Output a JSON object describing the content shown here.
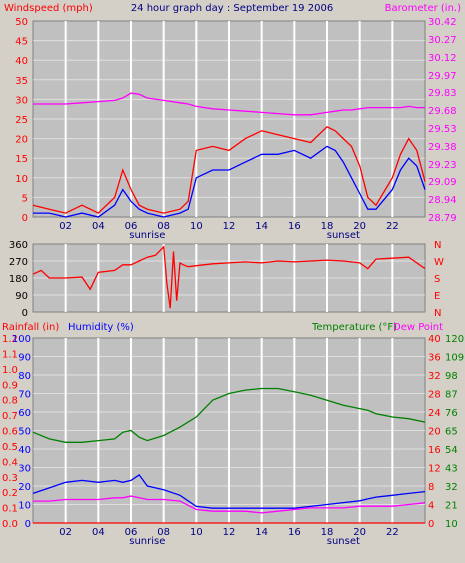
{
  "title": "24 hour graph day : September 19 2006",
  "colors": {
    "background": "#d4d0c8",
    "plot_bg": "#c0c0c0",
    "grid": "#ffffff",
    "wind": "#ff0000",
    "wind_gust": "#0000ff",
    "barometer": "#ff00ff",
    "direction": "#ff0000",
    "rain": "#ff0000",
    "humidity": "#0000ff",
    "temperature": "#008000",
    "dew_point": "#ff00ff",
    "time_label": "#000080"
  },
  "time_ticks": [
    "02",
    "04",
    "06",
    "08",
    "10",
    "12",
    "14",
    "16",
    "18",
    "20",
    "22"
  ],
  "sunrise_label": "sunrise",
  "sunset_label": "sunset",
  "chart_data": [
    {
      "type": "line",
      "panel": "wind_barometer",
      "left_axis_label": "Windspeed (mph)",
      "right_axis_label": "Barometer (in.)",
      "left_ticks": [
        "0",
        "5",
        "10",
        "15",
        "20",
        "25",
        "30",
        "35",
        "40",
        "45",
        "50"
      ],
      "left_ylim": [
        0,
        50
      ],
      "right_ticks": [
        "28.79",
        "28.94",
        "29.09",
        "29.23",
        "29.38",
        "29.53",
        "29.68",
        "29.83",
        "29.97",
        "30.12",
        "30.27",
        "30.42"
      ],
      "right_ylim": [
        28.79,
        30.42
      ],
      "xlim": [
        0,
        24
      ],
      "x": [
        0,
        1,
        2,
        3,
        4,
        5,
        5.5,
        6,
        6.5,
        7,
        8,
        9,
        9.5,
        10,
        11,
        12,
        13,
        14,
        15,
        16,
        17,
        18,
        18.5,
        19,
        19.5,
        20,
        20.5,
        21,
        22,
        22.5,
        23,
        23.5,
        24
      ],
      "series": [
        {
          "color_key": "wind",
          "axis": "left",
          "values": [
            3,
            2,
            1,
            3,
            1,
            5,
            12,
            7,
            3,
            2,
            1,
            2,
            4,
            17,
            18,
            17,
            20,
            22,
            21,
            20,
            19,
            23,
            22,
            20,
            18,
            13,
            5,
            3,
            10,
            16,
            20,
            17,
            9
          ]
        },
        {
          "color_key": "wind_gust",
          "axis": "left",
          "values": [
            1,
            1,
            0,
            1,
            0,
            3,
            7,
            4,
            2,
            1,
            0,
            1,
            2,
            10,
            12,
            12,
            14,
            16,
            16,
            17,
            15,
            18,
            17,
            14,
            10,
            6,
            2,
            2,
            7,
            12,
            15,
            13,
            7
          ]
        },
        {
          "color_key": "barometer",
          "axis": "right",
          "values": [
            29.73,
            29.73,
            29.73,
            29.74,
            29.75,
            29.76,
            29.78,
            29.82,
            29.81,
            29.78,
            29.76,
            29.74,
            29.73,
            29.71,
            29.69,
            29.68,
            29.67,
            29.66,
            29.65,
            29.64,
            29.64,
            29.66,
            29.67,
            29.68,
            29.68,
            29.69,
            29.7,
            29.7,
            29.7,
            29.7,
            29.71,
            29.7,
            29.7
          ]
        }
      ]
    },
    {
      "type": "line",
      "panel": "wind_direction",
      "left_ticks": [
        "0",
        "90",
        "180",
        "270",
        "360"
      ],
      "left_ylim": [
        0,
        360
      ],
      "right_ticks": [
        "N",
        "W",
        "S",
        "E",
        "N"
      ],
      "xlim": [
        0,
        24
      ],
      "x": [
        0,
        0.5,
        1,
        2,
        3,
        3.5,
        4,
        5,
        5.5,
        6,
        6.5,
        7,
        7.5,
        8,
        8.2,
        8.4,
        8.6,
        8.8,
        9,
        9.2,
        9.5,
        10,
        11,
        12,
        13,
        14,
        15,
        16,
        17,
        18,
        19,
        20,
        20.5,
        21,
        22,
        23,
        24
      ],
      "series": [
        {
          "color_key": "direction",
          "axis": "left",
          "values": [
            200,
            220,
            180,
            180,
            185,
            120,
            210,
            220,
            250,
            250,
            270,
            290,
            300,
            345,
            150,
            20,
            320,
            60,
            260,
            250,
            240,
            245,
            255,
            260,
            265,
            260,
            270,
            265,
            270,
            275,
            270,
            260,
            230,
            280,
            285,
            290,
            230
          ]
        }
      ]
    },
    {
      "type": "line",
      "panel": "rain_humidity_temperature",
      "left_axis_label": "Rainfall (in)",
      "left2_axis_label": "Humidity (%)",
      "right_axis_label": "Temperature (°F)",
      "right2_axis_label": "Dew Point",
      "rain_ticks": [
        "0.0",
        "0.1",
        "0.2",
        "0.3",
        "0.4",
        "0.5",
        "0.6",
        "0.7",
        "0.8",
        "0.9",
        "1.0",
        "1.1",
        "1.2"
      ],
      "rain_ylim": [
        0,
        1.2
      ],
      "humidity_ticks": [
        "0",
        "10",
        "20",
        "30",
        "40",
        "50",
        "60",
        "70",
        "80",
        "90",
        "100"
      ],
      "humidity_ylim": [
        0,
        100
      ],
      "celsius_ticks": [
        "0",
        "4",
        "8",
        "12",
        "16",
        "20",
        "24",
        "28",
        "32",
        "36",
        "40"
      ],
      "temperature_ticks": [
        "10",
        "21",
        "32",
        "43",
        "54",
        "65",
        "76",
        "87",
        "98",
        "109",
        "120"
      ],
      "temperature_ylim": [
        10,
        120
      ],
      "xlim": [
        0,
        24
      ],
      "x": [
        0,
        1,
        2,
        3,
        4,
        5,
        5.5,
        6,
        6.5,
        7,
        8,
        9,
        10,
        11,
        12,
        13,
        14,
        15,
        16,
        17,
        18,
        19,
        20,
        20.5,
        21,
        22,
        23,
        24
      ],
      "series": [
        {
          "color_key": "temperature",
          "axis": "temperature",
          "values": [
            64,
            60,
            58,
            58,
            59,
            60,
            64,
            65,
            61,
            59,
            62,
            67,
            73,
            83,
            87,
            89,
            90,
            90,
            88,
            86,
            83,
            80,
            78,
            77,
            75,
            73,
            72,
            70
          ]
        },
        {
          "color_key": "humidity",
          "axis": "humidity",
          "values": [
            16,
            19,
            22,
            23,
            22,
            23,
            22,
            23,
            26,
            20,
            18,
            15,
            9,
            8,
            8,
            8,
            8,
            8,
            8,
            9,
            10,
            11,
            12,
            13,
            14,
            15,
            16,
            17
          ]
        },
        {
          "color_key": "dew_point",
          "axis": "temperature",
          "values": [
            23,
            23,
            24,
            24,
            24,
            25,
            25,
            26,
            25,
            24,
            24,
            23,
            18,
            17,
            17,
            17,
            16,
            17,
            18,
            19,
            19,
            19,
            20,
            20,
            20,
            20,
            21,
            22
          ]
        },
        {
          "color_key": "rain",
          "axis": "rain",
          "values": [
            0,
            0,
            0,
            0,
            0,
            0,
            0,
            0,
            0,
            0,
            0,
            0,
            0,
            0,
            0,
            0,
            0,
            0,
            0,
            0,
            0,
            0,
            0,
            0,
            0,
            0,
            0,
            0
          ]
        }
      ]
    }
  ]
}
